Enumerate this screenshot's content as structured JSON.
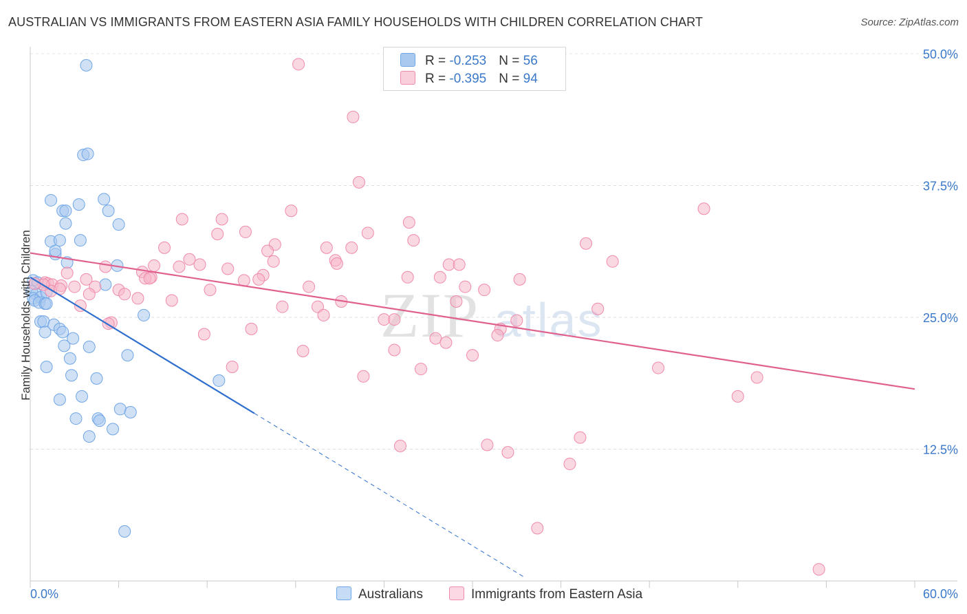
{
  "title": "AUSTRALIAN VS IMMIGRANTS FROM EASTERN ASIA FAMILY HOUSEHOLDS WITH CHILDREN CORRELATION CHART",
  "source": "Source: ZipAtlas.com",
  "watermark": {
    "zip": "ZIP",
    "atlas": "atlas"
  },
  "legend": {
    "rows": [
      {
        "r_label": "R = ",
        "r_value": "-0.253",
        "n_label": "N = ",
        "n_value": "56",
        "color": "#aac9ef"
      },
      {
        "r_label": "R = ",
        "r_value": "-0.395",
        "n_label": "N = ",
        "n_value": "94",
        "color": "#f5b8cb"
      }
    ]
  },
  "chart_data": {
    "type": "scatter",
    "title": "AUSTRALIAN VS IMMIGRANTS FROM EASTERN ASIA FAMILY HOUSEHOLDS WITH CHILDREN CORRELATION CHART",
    "xlabel": "",
    "ylabel": "Family Households with Children",
    "xlim": [
      0,
      60
    ],
    "ylim": [
      0,
      50
    ],
    "x_tick_labels": [
      "0.0%",
      "60.0%"
    ],
    "y_ticks": [
      12.5,
      25.0,
      37.5,
      50.0
    ],
    "y_tick_labels": [
      "12.5%",
      "25.0%",
      "37.5%",
      "50.0%"
    ],
    "grid": true,
    "legend_position": "bottom",
    "series": [
      {
        "name": "Australians",
        "color": "#6fa6e6",
        "fill": "#aac9ef",
        "line_color": "#2e6fce",
        "trend": {
          "x0": 0,
          "y0": 28.8,
          "x1": 15.2,
          "y1": 15.9,
          "dash_to_x": 33.5
        },
        "points": [
          [
            3.8,
            48.9
          ],
          [
            3.6,
            40.4
          ],
          [
            3.9,
            40.5
          ],
          [
            1.4,
            36.1
          ],
          [
            2.2,
            35.1
          ],
          [
            2.4,
            35.1
          ],
          [
            3.3,
            35.7
          ],
          [
            5.0,
            36.2
          ],
          [
            5.3,
            35.1
          ],
          [
            6.0,
            33.8
          ],
          [
            2.4,
            33.9
          ],
          [
            1.4,
            32.2
          ],
          [
            2.0,
            32.3
          ],
          [
            3.4,
            32.3
          ],
          [
            1.7,
            31.0
          ],
          [
            1.7,
            31.3
          ],
          [
            2.5,
            30.2
          ],
          [
            5.9,
            29.9
          ],
          [
            5.1,
            28.1
          ],
          [
            0.2,
            28.5
          ],
          [
            0.5,
            28.3
          ],
          [
            0.1,
            27.5
          ],
          [
            0.4,
            27.2
          ],
          [
            0.2,
            26.8
          ],
          [
            0.7,
            26.9
          ],
          [
            0.3,
            26.6
          ],
          [
            0.6,
            26.4
          ],
          [
            1.0,
            26.3
          ],
          [
            1.1,
            26.3
          ],
          [
            1.1,
            27.4
          ],
          [
            7.7,
            25.2
          ],
          [
            0.7,
            24.6
          ],
          [
            0.9,
            24.6
          ],
          [
            1.6,
            24.3
          ],
          [
            2.0,
            23.9
          ],
          [
            2.2,
            23.6
          ],
          [
            1.0,
            23.6
          ],
          [
            2.9,
            23.0
          ],
          [
            2.3,
            22.3
          ],
          [
            4.0,
            22.2
          ],
          [
            6.6,
            21.4
          ],
          [
            2.7,
            21.1
          ],
          [
            1.1,
            20.3
          ],
          [
            2.8,
            19.5
          ],
          [
            4.5,
            19.2
          ],
          [
            12.8,
            19.0
          ],
          [
            3.5,
            17.5
          ],
          [
            2.0,
            17.2
          ],
          [
            6.1,
            16.3
          ],
          [
            6.8,
            16.0
          ],
          [
            3.1,
            15.4
          ],
          [
            4.6,
            15.4
          ],
          [
            4.7,
            15.2
          ],
          [
            5.6,
            14.4
          ],
          [
            4.0,
            13.7
          ],
          [
            6.4,
            4.7
          ]
        ]
      },
      {
        "name": "Immigrants from Eastern Asia",
        "color": "#f08aaa",
        "fill": "#f5b8cb",
        "line_color": "#e0608e",
        "trend": {
          "x0": 0,
          "y0": 31.1,
          "x1": 60,
          "y1": 18.2
        },
        "points": [
          [
            18.2,
            49.0
          ],
          [
            21.9,
            44.0
          ],
          [
            22.3,
            37.8
          ],
          [
            45.7,
            35.3
          ],
          [
            17.7,
            35.1
          ],
          [
            10.3,
            34.3
          ],
          [
            13.0,
            34.3
          ],
          [
            25.7,
            34.0
          ],
          [
            12.7,
            32.9
          ],
          [
            14.6,
            33.1
          ],
          [
            22.9,
            33.0
          ],
          [
            26.0,
            32.3
          ],
          [
            37.7,
            32.0
          ],
          [
            16.6,
            31.9
          ],
          [
            9.1,
            31.6
          ],
          [
            20.1,
            31.6
          ],
          [
            21.8,
            31.6
          ],
          [
            16.1,
            31.3
          ],
          [
            39.5,
            30.3
          ],
          [
            16.5,
            30.3
          ],
          [
            20.7,
            30.4
          ],
          [
            10.8,
            30.5
          ],
          [
            11.5,
            30.0
          ],
          [
            8.4,
            29.9
          ],
          [
            10.1,
            29.8
          ],
          [
            5.1,
            29.8
          ],
          [
            20.8,
            30.1
          ],
          [
            28.4,
            30.0
          ],
          [
            29.1,
            30.0
          ],
          [
            13.4,
            29.6
          ],
          [
            7.6,
            29.3
          ],
          [
            15.8,
            29.0
          ],
          [
            2.5,
            29.2
          ],
          [
            3.8,
            28.6
          ],
          [
            8.2,
            28.8
          ],
          [
            7.8,
            28.7
          ],
          [
            8.1,
            28.7
          ],
          [
            14.5,
            28.5
          ],
          [
            15.5,
            28.6
          ],
          [
            25.6,
            28.8
          ],
          [
            27.8,
            28.8
          ],
          [
            33.2,
            28.6
          ],
          [
            1.0,
            28.3
          ],
          [
            1.2,
            28.2
          ],
          [
            1.5,
            28.1
          ],
          [
            2.1,
            28.0
          ],
          [
            3.0,
            27.9
          ],
          [
            4.4,
            27.9
          ],
          [
            6.0,
            27.6
          ],
          [
            6.4,
            27.2
          ],
          [
            4.0,
            27.2
          ],
          [
            12.2,
            27.6
          ],
          [
            18.9,
            27.9
          ],
          [
            29.5,
            27.9
          ],
          [
            30.8,
            27.6
          ],
          [
            1.4,
            27.5
          ],
          [
            2.0,
            27.7
          ],
          [
            0.9,
            28.1
          ],
          [
            0.3,
            28.2
          ],
          [
            7.3,
            26.8
          ],
          [
            9.6,
            26.6
          ],
          [
            21.1,
            26.5
          ],
          [
            28.9,
            26.5
          ],
          [
            3.4,
            26.1
          ],
          [
            17.1,
            26.0
          ],
          [
            19.5,
            26.0
          ],
          [
            38.5,
            25.8
          ],
          [
            19.9,
            25.2
          ],
          [
            24.0,
            24.8
          ],
          [
            24.7,
            24.8
          ],
          [
            33.0,
            24.7
          ],
          [
            5.5,
            24.5
          ],
          [
            5.3,
            24.4
          ],
          [
            15.0,
            23.9
          ],
          [
            31.9,
            23.9
          ],
          [
            11.8,
            23.4
          ],
          [
            27.5,
            23.0
          ],
          [
            31.7,
            23.3
          ],
          [
            28.2,
            22.6
          ],
          [
            18.5,
            21.8
          ],
          [
            24.7,
            21.9
          ],
          [
            30.0,
            21.4
          ],
          [
            13.7,
            20.3
          ],
          [
            26.5,
            20.1
          ],
          [
            42.6,
            20.2
          ],
          [
            22.6,
            19.4
          ],
          [
            49.3,
            19.3
          ],
          [
            48.0,
            17.5
          ],
          [
            25.1,
            12.8
          ],
          [
            31.0,
            12.9
          ],
          [
            32.4,
            12.2
          ],
          [
            37.3,
            13.6
          ],
          [
            36.6,
            11.1
          ],
          [
            34.4,
            5.0
          ],
          [
            53.5,
            1.1
          ]
        ]
      }
    ]
  }
}
